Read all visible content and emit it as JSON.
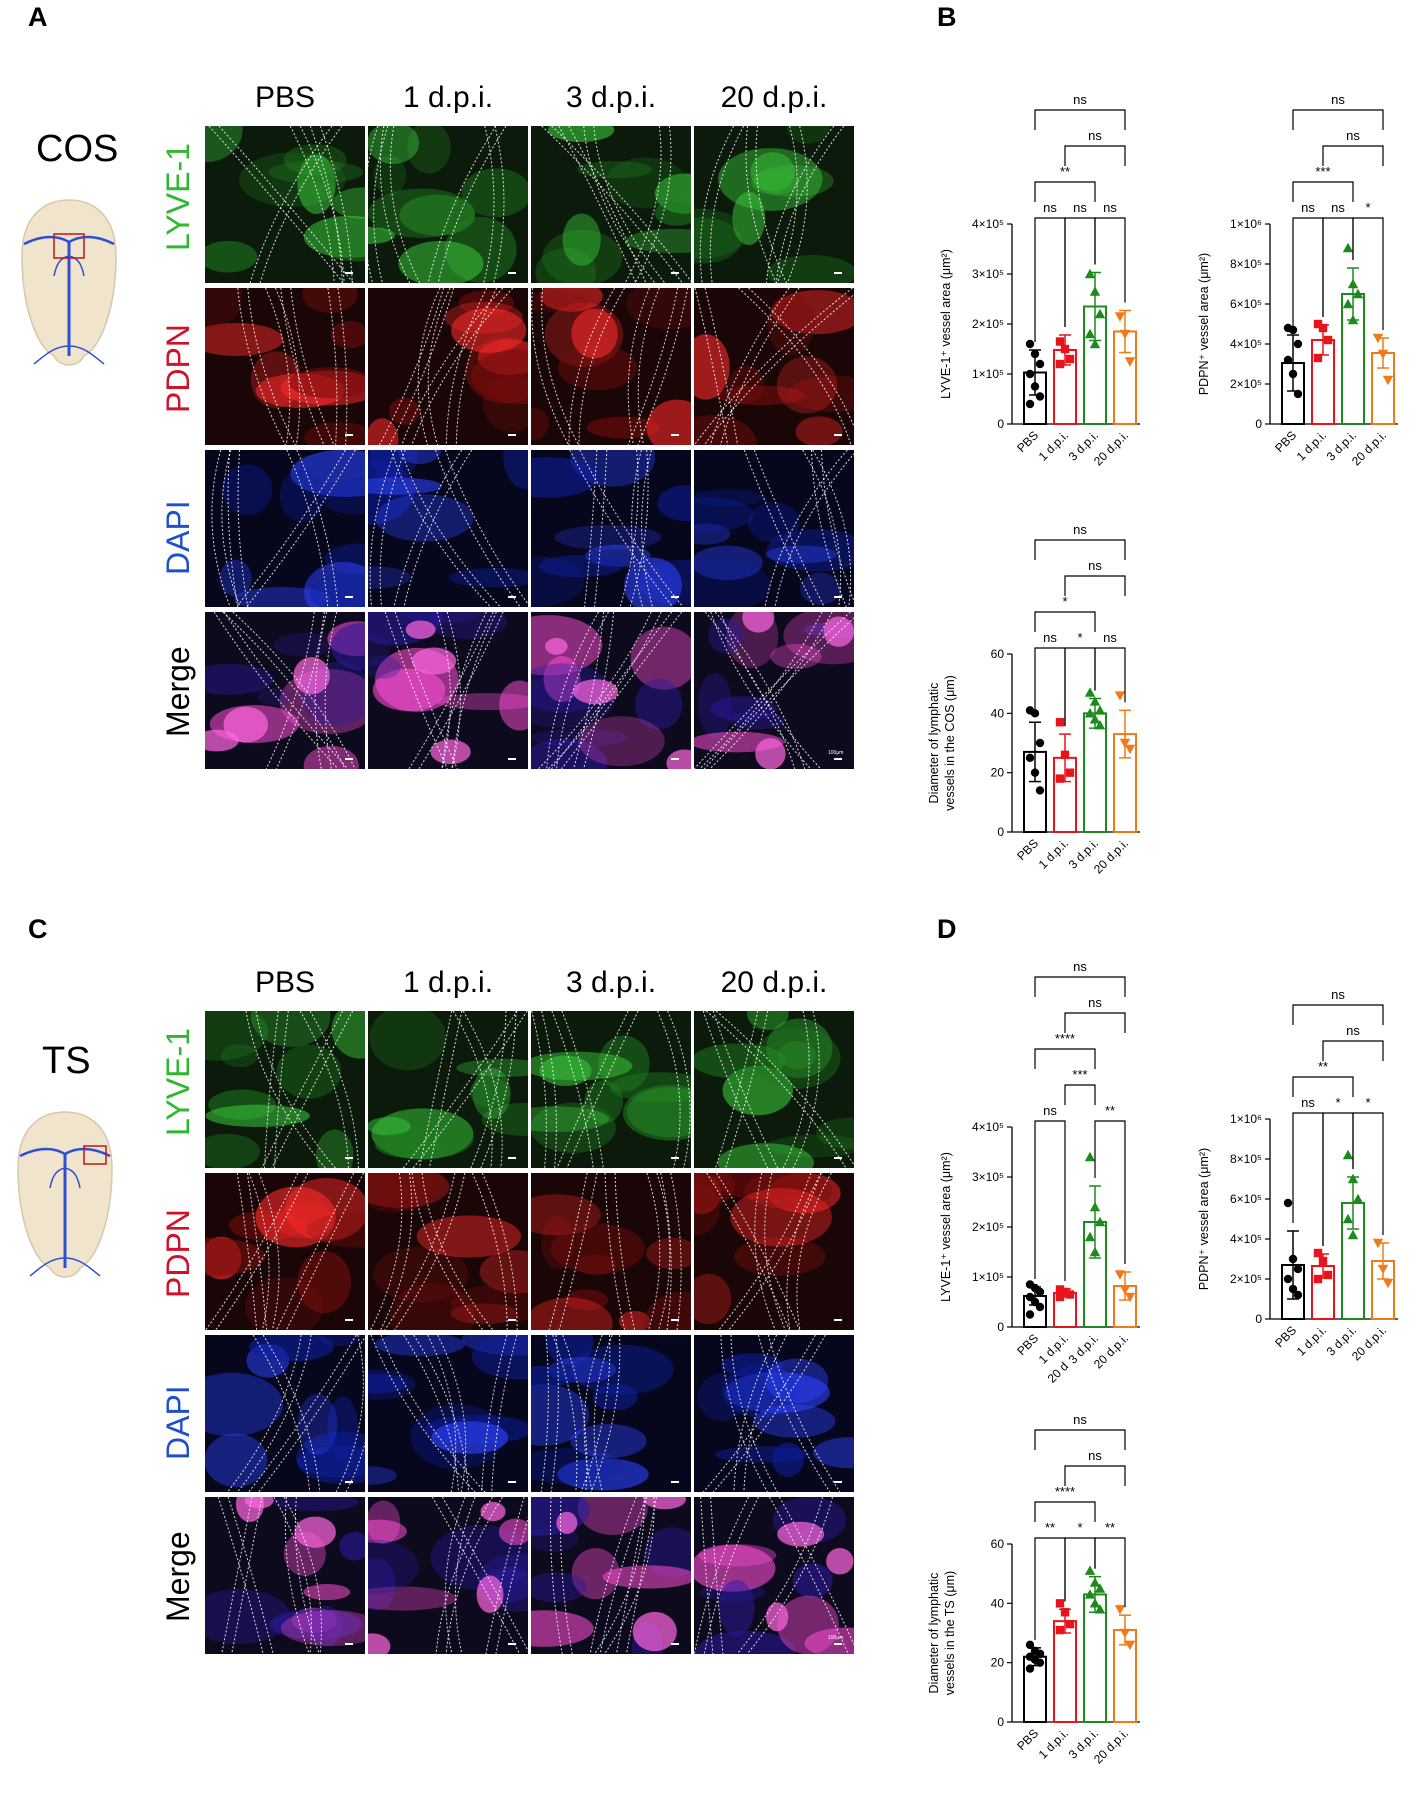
{
  "panels": {
    "A": "A",
    "B": "B",
    "C": "C",
    "D": "D"
  },
  "micrographs": [
    {
      "id": "A",
      "region_label": "COS",
      "columns": [
        "PBS",
        "1 d.p.i.",
        "3 d.p.i.",
        "20 d.p.i."
      ],
      "rows": [
        {
          "label": "LYVE-1",
          "color": "#2eb82e"
        },
        {
          "label": "PDPN",
          "color": "#d0112b"
        },
        {
          "label": "DAPI",
          "color": "#1f4fcc"
        },
        {
          "label": "Merge",
          "color": "#000000"
        }
      ],
      "scale_bar_label": "100μm"
    },
    {
      "id": "C",
      "region_label": "TS",
      "columns": [
        "PBS",
        "1 d.p.i.",
        "3 d.p.i.",
        "20 d.p.i."
      ],
      "rows": [
        {
          "label": "LYVE-1",
          "color": "#2eb82e"
        },
        {
          "label": "PDPN",
          "color": "#d0112b"
        },
        {
          "label": "DAPI",
          "color": "#1f4fcc"
        },
        {
          "label": "Merge",
          "color": "#000000"
        }
      ],
      "scale_bar_label": "100μm"
    }
  ],
  "chart_data": [
    {
      "id": "B-LYVE1",
      "type": "bar",
      "categories": [
        "PBS",
        "1 d.p.i.",
        "3 d.p.i.",
        "20 d.p.i."
      ],
      "colors": [
        "#000000",
        "#e8141b",
        "#1d8a1d",
        "#f07a18"
      ],
      "markers": [
        "circle",
        "square",
        "triangle",
        "invtriangle"
      ],
      "ylabel": "LYVE-1⁺ vessel area (μm²)",
      "ylim": [
        0,
        400000
      ],
      "yticks": [
        0,
        100000,
        200000,
        300000,
        400000
      ],
      "ytick_labels": [
        "0",
        "1×10⁵",
        "2×10⁵",
        "3×10⁵",
        "4×10⁵"
      ],
      "values": [
        103000,
        148000,
        235000,
        185000
      ],
      "errors": [
        45000,
        30000,
        68000,
        42000
      ],
      "points": [
        [
          160000,
          140000,
          120000,
          100000,
          75000,
          55000,
          40000
        ],
        [
          165000,
          150000,
          130000,
          120000
        ],
        [
          300000,
          265000,
          220000,
          180000,
          160000
        ],
        [
          215000,
          180000,
          125000
        ]
      ],
      "comparisons": [
        {
          "from": 2,
          "to": 3,
          "label": "ns",
          "level": 0
        },
        {
          "from": 1,
          "to": 2,
          "label": "ns",
          "level": 0
        },
        {
          "from": 0,
          "to": 1,
          "label": "ns",
          "level": 0
        },
        {
          "from": 0,
          "to": 2,
          "label": "**",
          "level": 1
        },
        {
          "from": 1,
          "to": 3,
          "label": "ns",
          "level": 2
        },
        {
          "from": 0,
          "to": 3,
          "label": "ns",
          "level": 3
        }
      ]
    },
    {
      "id": "B-PDPN",
      "type": "bar",
      "categories": [
        "PBS",
        "1 d.p.i.",
        "3 d.p.i.",
        "20 d.p.i."
      ],
      "colors": [
        "#000000",
        "#e8141b",
        "#1d8a1d",
        "#f07a18"
      ],
      "markers": [
        "circle",
        "square",
        "triangle",
        "invtriangle"
      ],
      "ylabel": "PDPN⁺ vessel area (μm²)",
      "ylim": [
        0,
        1000000
      ],
      "yticks": [
        0,
        200000,
        400000,
        600000,
        800000,
        1000000
      ],
      "ytick_labels": [
        "0",
        "2×10⁵",
        "4×10⁵",
        "6×10⁵",
        "8×10⁵",
        "1×10⁶"
      ],
      "values": [
        305000,
        420000,
        650000,
        355000
      ],
      "errors": [
        140000,
        75000,
        130000,
        75000
      ],
      "points": [
        [
          480000,
          470000,
          400000,
          320000,
          250000,
          150000
        ],
        [
          500000,
          480000,
          420000,
          330000
        ],
        [
          880000,
          700000,
          650000,
          600000,
          520000
        ],
        [
          430000,
          350000,
          220000
        ]
      ],
      "comparisons": [
        {
          "from": 2,
          "to": 3,
          "label": "*",
          "level": 0
        },
        {
          "from": 1,
          "to": 2,
          "label": "ns",
          "level": 0
        },
        {
          "from": 0,
          "to": 1,
          "label": "ns",
          "level": 0
        },
        {
          "from": 0,
          "to": 2,
          "label": "***",
          "level": 1
        },
        {
          "from": 1,
          "to": 3,
          "label": "ns",
          "level": 2
        },
        {
          "from": 0,
          "to": 3,
          "label": "ns",
          "level": 3
        }
      ]
    },
    {
      "id": "B-Diameter",
      "type": "bar",
      "categories": [
        "PBS",
        "1 d.p.i.",
        "3 d.p.i.",
        "20 d.p.i."
      ],
      "colors": [
        "#000000",
        "#e8141b",
        "#1d8a1d",
        "#f07a18"
      ],
      "markers": [
        "circle",
        "square",
        "triangle",
        "invtriangle"
      ],
      "ylabel": "Diameter of lymphatic vessels in the COS (μm)",
      "ylim": [
        0,
        60
      ],
      "yticks": [
        0,
        20,
        40,
        60
      ],
      "ytick_labels": [
        "0",
        "20",
        "40",
        "60"
      ],
      "values": [
        27,
        25,
        40,
        33
      ],
      "errors": [
        10,
        8,
        5,
        8
      ],
      "points": [
        [
          41,
          40,
          30,
          25,
          20,
          14
        ],
        [
          37,
          26,
          20,
          18
        ],
        [
          47,
          44,
          41,
          40,
          38,
          36
        ],
        [
          46,
          30,
          28
        ]
      ],
      "comparisons": [
        {
          "from": 2,
          "to": 3,
          "label": "ns",
          "level": 0
        },
        {
          "from": 1,
          "to": 2,
          "label": "*",
          "level": 0
        },
        {
          "from": 0,
          "to": 1,
          "label": "ns",
          "level": 0
        },
        {
          "from": 0,
          "to": 2,
          "label": "*",
          "level": 1
        },
        {
          "from": 1,
          "to": 3,
          "label": "ns",
          "level": 2
        },
        {
          "from": 0,
          "to": 3,
          "label": "ns",
          "level": 3
        }
      ]
    },
    {
      "id": "D-LYVE1",
      "type": "bar",
      "categories": [
        "PBS",
        "1 d.p.i.",
        "3 d.p.i.",
        "20 d.p.i."
      ],
      "extra_tick_label": "20 d",
      "colors": [
        "#000000",
        "#e8141b",
        "#1d8a1d",
        "#f07a18"
      ],
      "markers": [
        "circle",
        "square",
        "triangle",
        "invtriangle"
      ],
      "ylabel": "LYVE-1⁺ vessel area (μm²)",
      "ylim": [
        0,
        400000
      ],
      "yticks": [
        0,
        100000,
        200000,
        300000,
        400000
      ],
      "ytick_labels": [
        "0",
        "1×10⁵",
        "2×10⁵",
        "3×10⁵",
        "4×10⁵"
      ],
      "values": [
        62000,
        68000,
        210000,
        82000
      ],
      "errors": [
        18000,
        8000,
        72000,
        28000
      ],
      "points": [
        [
          85000,
          78000,
          70000,
          60000,
          50000,
          40000,
          25000
        ],
        [
          75000,
          70000,
          65000,
          60000
        ],
        [
          340000,
          240000,
          210000,
          180000,
          150000
        ],
        [
          105000,
          75000,
          60000
        ]
      ],
      "comparisons": [
        {
          "from": 2,
          "to": 3,
          "label": "**",
          "level": 0
        },
        {
          "from": 0,
          "to": 1,
          "label": "ns",
          "level": 0
        },
        {
          "from": 1,
          "to": 2,
          "label": "***",
          "level": 1
        },
        {
          "from": 0,
          "to": 2,
          "label": "****",
          "level": 2
        },
        {
          "from": 1,
          "to": 3,
          "label": "ns",
          "level": 3
        },
        {
          "from": 0,
          "to": 3,
          "label": "ns",
          "level": 4
        }
      ]
    },
    {
      "id": "D-PDPN",
      "type": "bar",
      "categories": [
        "PBS",
        "1 d.p.i.",
        "3 d.p.i.",
        "20 d.p.i."
      ],
      "colors": [
        "#000000",
        "#e8141b",
        "#1d8a1d",
        "#f07a18"
      ],
      "markers": [
        "circle",
        "square",
        "triangle",
        "invtriangle"
      ],
      "ylabel": "PDPN⁺ vessel area (μm²)",
      "ylim": [
        0,
        1000000
      ],
      "yticks": [
        0,
        200000,
        400000,
        600000,
        800000,
        1000000
      ],
      "ytick_labels": [
        "0",
        "2×10⁵",
        "4×10⁵",
        "6×10⁵",
        "8×10⁵",
        "1×10⁶"
      ],
      "values": [
        270000,
        265000,
        580000,
        290000
      ],
      "errors": [
        170000,
        60000,
        130000,
        90000
      ],
      "points": [
        [
          580000,
          300000,
          250000,
          200000,
          150000,
          120000
        ],
        [
          330000,
          290000,
          220000,
          200000
        ],
        [
          820000,
          700000,
          600000,
          500000,
          420000
        ],
        [
          380000,
          250000,
          180000
        ]
      ],
      "comparisons": [
        {
          "from": 2,
          "to": 3,
          "label": "*",
          "level": 0
        },
        {
          "from": 1,
          "to": 2,
          "label": "*",
          "level": 0
        },
        {
          "from": 0,
          "to": 1,
          "label": "ns",
          "level": 0
        },
        {
          "from": 0,
          "to": 2,
          "label": "**",
          "level": 1
        },
        {
          "from": 1,
          "to": 3,
          "label": "ns",
          "level": 2
        },
        {
          "from": 0,
          "to": 3,
          "label": "ns",
          "level": 3
        }
      ]
    },
    {
      "id": "D-Diameter",
      "type": "bar",
      "categories": [
        "PBS",
        "1 d.p.i.",
        "3 d.p.i.",
        "20 d.p.i."
      ],
      "colors": [
        "#000000",
        "#e8141b",
        "#1d8a1d",
        "#f07a18"
      ],
      "markers": [
        "circle",
        "square",
        "triangle",
        "invtriangle"
      ],
      "ylabel": "Diameter of lymphatic vessels in the TS (μm)",
      "ylim": [
        0,
        60
      ],
      "yticks": [
        0,
        20,
        40,
        60
      ],
      "ytick_labels": [
        "0",
        "20",
        "40",
        "60"
      ],
      "values": [
        22,
        34,
        43,
        31
      ],
      "errors": [
        3,
        4,
        6,
        5
      ],
      "points": [
        [
          26,
          24,
          23,
          22,
          21,
          20,
          18
        ],
        [
          40,
          37,
          33,
          31
        ],
        [
          51,
          47,
          45,
          43,
          40,
          38
        ],
        [
          38,
          30,
          26
        ]
      ],
      "comparisons": [
        {
          "from": 2,
          "to": 3,
          "label": "**",
          "level": 0
        },
        {
          "from": 1,
          "to": 2,
          "label": "*",
          "level": 0
        },
        {
          "from": 0,
          "to": 1,
          "label": "**",
          "level": 0
        },
        {
          "from": 0,
          "to": 2,
          "label": "****",
          "level": 1
        },
        {
          "from": 1,
          "to": 3,
          "label": "ns",
          "level": 2
        },
        {
          "from": 0,
          "to": 3,
          "label": "ns",
          "level": 3
        }
      ]
    }
  ]
}
